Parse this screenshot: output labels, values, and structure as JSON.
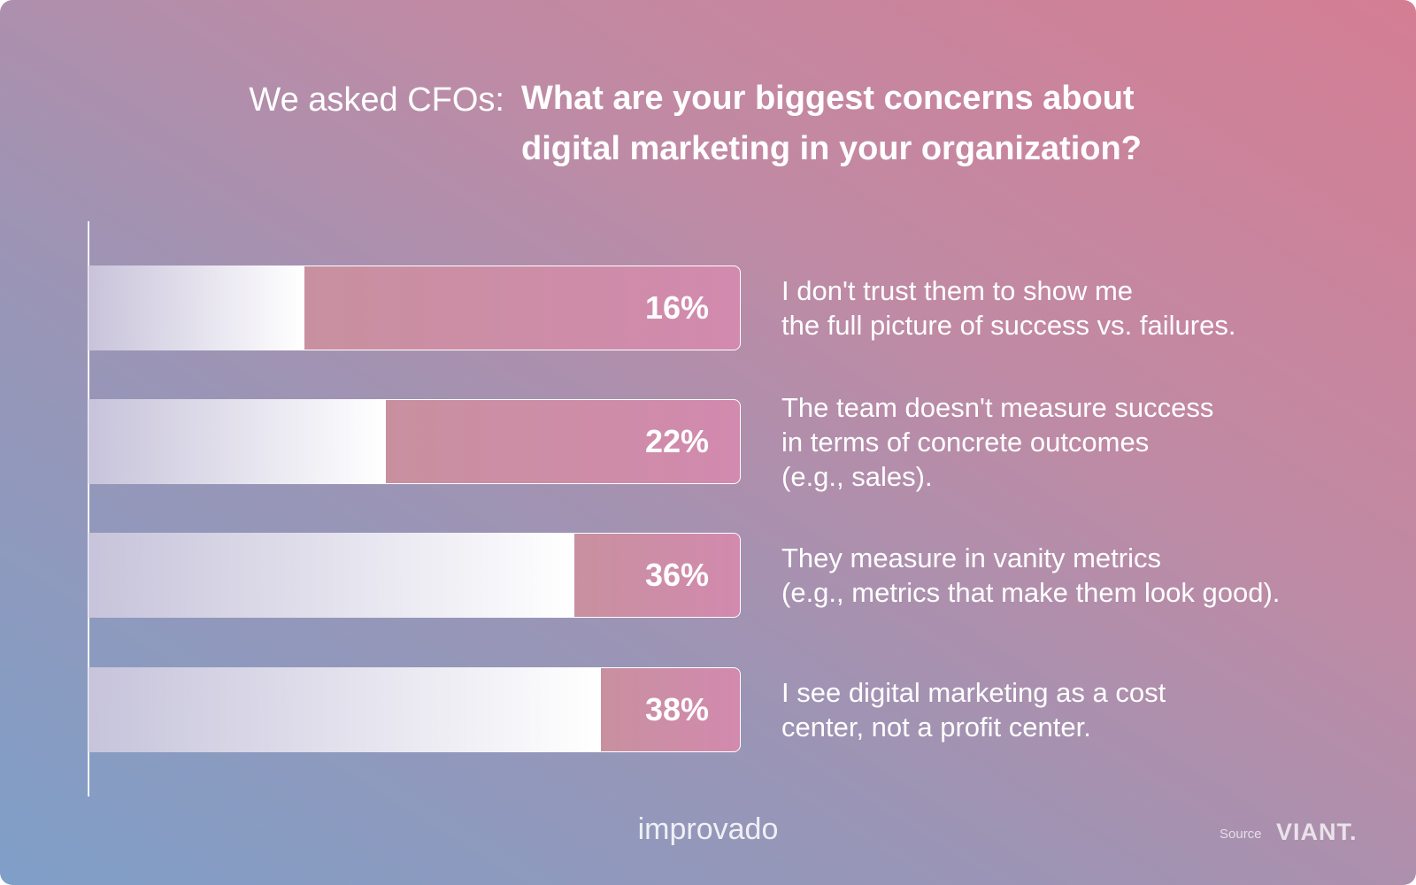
{
  "chart_data": {
    "type": "bar",
    "title_prefix": "We asked CFOs:",
    "title": "What are your biggest concerns about\ndigital marketing in your organization?",
    "categories": [
      "I don't trust them to show me\nthe full picture of success vs. failures.",
      "The team doesn't measure success\nin terms of concrete outcomes\n(e.g., sales).",
      "They measure in vanity metrics\n(e.g., metrics that make them look good).",
      "I see digital marketing as a cost\ncenter, not a profit center."
    ],
    "values": [
      16,
      22,
      36,
      38
    ],
    "value_labels": [
      "16%",
      "22%",
      "36%",
      "38%"
    ],
    "color": "#d28aae",
    "logo": "improvado",
    "source_label": "Source",
    "source": "VIANT."
  }
}
